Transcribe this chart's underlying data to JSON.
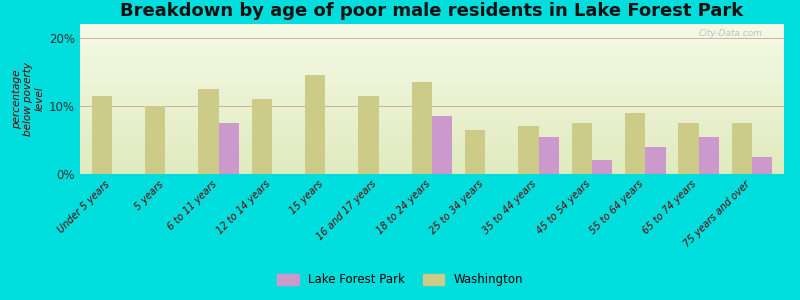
{
  "title": "Breakdown by age of poor male residents in Lake Forest Park",
  "ylabel": "percentage\nbelow poverty\nlevel",
  "categories": [
    "Under 5 years",
    "5 years",
    "6 to 11 years",
    "12 to 14 years",
    "15 years",
    "16 and 17 years",
    "18 to 24 years",
    "25 to 34 years",
    "35 to 44 years",
    "45 to 54 years",
    "55 to 64 years",
    "65 to 74 years",
    "75 years and over"
  ],
  "lfp_values": [
    0,
    0,
    7.5,
    0,
    0,
    0,
    8.5,
    0,
    5.5,
    2.0,
    4.0,
    5.5,
    2.5
  ],
  "wa_values": [
    11.5,
    10.0,
    12.5,
    11.0,
    14.5,
    11.5,
    13.5,
    6.5,
    7.0,
    7.5,
    9.0,
    7.5,
    7.5
  ],
  "lfp_color": "#cc99cc",
  "wa_color": "#cccc88",
  "fig_bg": "#00dddd",
  "ylim": [
    0,
    22
  ],
  "yticks": [
    0,
    10,
    20
  ],
  "ytick_labels": [
    "0%",
    "10%",
    "20%"
  ],
  "title_fontsize": 13,
  "axis_label_fontsize": 7.5,
  "tick_label_fontsize": 7.0,
  "bar_width": 0.38,
  "watermark": "City-Data.com",
  "legend_labels": [
    "Lake Forest Park",
    "Washington"
  ]
}
